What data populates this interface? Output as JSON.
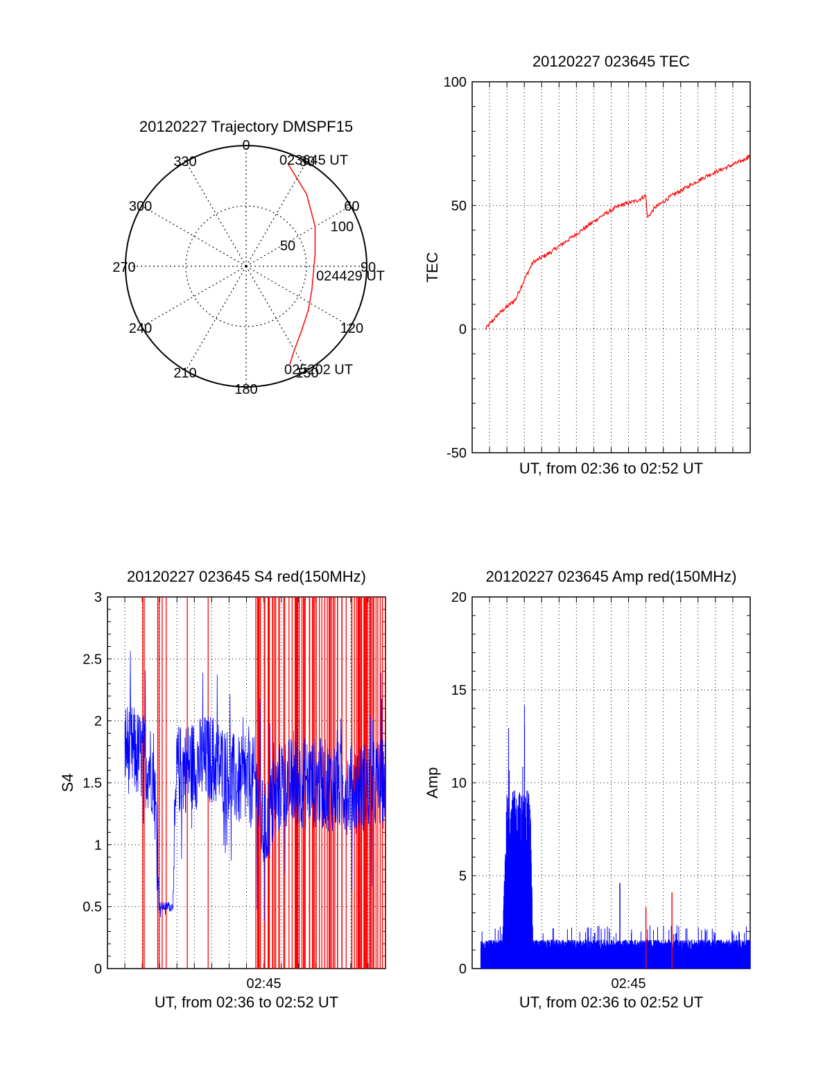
{
  "chart_data": [
    {
      "type": "polar",
      "title": "20120227 Trajectory DMSPF15",
      "angle_labels": [
        "0",
        "30",
        "60",
        "90",
        "120",
        "150",
        "180",
        "210",
        "240",
        "270",
        "300",
        "330"
      ],
      "radial_labels": [
        "50",
        "100"
      ],
      "radial_range": [
        0,
        100
      ],
      "trajectory_color": "#ff0000",
      "trajectory": [
        {
          "az": 22,
          "el": 8
        },
        {
          "az": 40,
          "el": 22
        },
        {
          "az": 60,
          "el": 34
        },
        {
          "az": 80,
          "el": 42
        },
        {
          "az": 95,
          "el": 44
        },
        {
          "az": 110,
          "el": 42
        },
        {
          "az": 125,
          "el": 37
        },
        {
          "az": 140,
          "el": 29
        },
        {
          "az": 150,
          "el": 20
        },
        {
          "az": 156,
          "el": 11
        }
      ],
      "annotations": [
        {
          "text": "023645 UT",
          "az": 22,
          "el": 8
        },
        {
          "text": "024429 UT",
          "az": 95,
          "el": 44
        },
        {
          "text": "025202 UT",
          "az": 156,
          "el": 11
        }
      ]
    },
    {
      "type": "line",
      "title": "20120227 023645 TEC",
      "xlabel": "UT, from 02:36 to 02:52 UT",
      "ylabel": "TEC",
      "xlim": [
        "02:36",
        "02:52"
      ],
      "ylim": [
        -50,
        100
      ],
      "yticks": [
        "-50",
        "0",
        "50",
        "100"
      ],
      "grid": true,
      "series": [
        {
          "color": "#ff0000",
          "x": [
            "02:36:45",
            "02:37:30",
            "02:38:30",
            "02:39:00",
            "02:39:30",
            "02:40:30",
            "02:41:30",
            "02:42:30",
            "02:43:30",
            "02:44:30",
            "02:45:30",
            "02:46:00",
            "02:46:05",
            "02:46:30",
            "02:47:30",
            "02:48:30",
            "02:49:30",
            "02:50:30",
            "02:51:30",
            "02:52:00"
          ],
          "y": [
            0,
            6,
            12,
            20,
            27,
            31,
            36,
            41,
            46,
            50,
            52,
            54,
            45,
            49,
            54,
            58,
            62,
            65,
            68,
            70
          ]
        }
      ]
    },
    {
      "type": "line",
      "title": "20120227 023645 S4 red(150MHz)",
      "xlabel": "UT, from 02:36 to 02:52 UT",
      "ylabel": "S4",
      "xlim": [
        "02:36",
        "02:52"
      ],
      "ylim": [
        0,
        3
      ],
      "yticks": [
        "0",
        "0.5",
        "1",
        "1.5",
        "2",
        "2.5",
        "3"
      ],
      "xticks": [
        "02:45"
      ],
      "grid": true,
      "series_colors": [
        "#ff0000",
        "#0000ff"
      ],
      "blue_level": [
        {
          "t": "02:37:00",
          "level": 1.8
        },
        {
          "t": "02:38:00",
          "level": 1.7
        },
        {
          "t": "02:38:40",
          "level": 1.6
        },
        {
          "t": "02:39:00",
          "level": 0.5
        },
        {
          "t": "02:39:45",
          "level": 0.5
        },
        {
          "t": "02:40:00",
          "level": 1.6
        },
        {
          "t": "02:42:00",
          "level": 1.7
        },
        {
          "t": "02:43:30",
          "level": 1.5
        },
        {
          "t": "02:44:30",
          "level": 1.5
        },
        {
          "t": "02:45:00",
          "level": 1.1
        },
        {
          "t": "02:46:00",
          "level": 1.5
        },
        {
          "t": "02:48:00",
          "level": 1.5
        },
        {
          "t": "02:50:00",
          "level": 1.45
        },
        {
          "t": "02:52:00",
          "level": 1.5
        }
      ]
    },
    {
      "type": "line",
      "title": "20120227 023645 Amp red(150MHz)",
      "xlabel": "UT, from 02:36 to 02:52 UT",
      "ylabel": "Amp",
      "xlim": [
        "02:36",
        "02:52"
      ],
      "ylim": [
        0,
        20
      ],
      "yticks": [
        "0",
        "5",
        "10",
        "15",
        "20"
      ],
      "xticks": [
        "02:45"
      ],
      "grid": true,
      "series_colors": [
        "#ff0000",
        "#0000ff"
      ],
      "blue_level": [
        {
          "t": "02:36:00",
          "level": 1.3
        },
        {
          "t": "02:37:45",
          "level": 1.3
        },
        {
          "t": "02:38:00",
          "level": 8.0
        },
        {
          "t": "02:39:20",
          "level": 8.0
        },
        {
          "t": "02:39:30",
          "level": 1.3
        },
        {
          "t": "02:52:00",
          "level": 1.3
        }
      ],
      "spikes": [
        {
          "t": "02:44:30",
          "value": 4.6,
          "color": "#0000ff"
        },
        {
          "t": "02:46:00",
          "value": 3.3,
          "color": "#ff0000"
        },
        {
          "t": "02:47:30",
          "value": 4.1,
          "color": "#ff0000"
        }
      ]
    }
  ]
}
